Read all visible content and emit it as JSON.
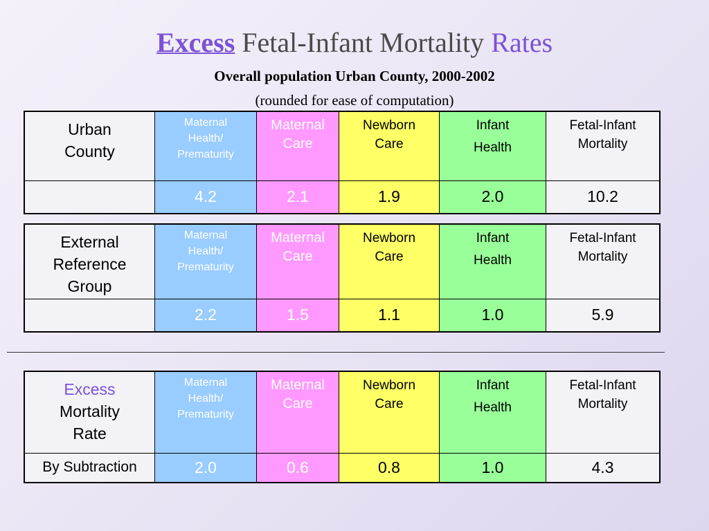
{
  "title": {
    "excess": "Excess",
    "middle": " Fetal-Infant Mortality ",
    "rates": "Rates"
  },
  "subtitle": "Overall population Urban County, 2000-2002",
  "subnote": "(rounded for ease of computation)",
  "columns": {
    "maternal_health": [
      "Maternal",
      "Health/",
      "Prematurity"
    ],
    "maternal_care": [
      "Maternal",
      "Care"
    ],
    "newborn_care": [
      "Newborn",
      "Care"
    ],
    "infant_health": [
      "Infant",
      "Health"
    ],
    "fetal_infant_mortality": [
      "Fetal-Infant",
      "Mortality"
    ]
  },
  "colors": {
    "maternal_health": "#99ccff",
    "maternal_care": "#ff99ff",
    "newborn_care": "#ffff66",
    "infant_health": "#99ff99",
    "fetal_infant_mortality": "#f2f2f7",
    "accent": "#7b52d6"
  },
  "tables": [
    {
      "label_lines": [
        "Urban",
        "County"
      ],
      "row_label": "",
      "values": [
        "4.2",
        "2.1",
        "1.9",
        "2.0",
        "10.2"
      ]
    },
    {
      "label_lines": [
        "External",
        "Reference",
        "Group"
      ],
      "row_label": "",
      "values": [
        "2.2",
        "1.5",
        "1.1",
        "1.0",
        "5.9"
      ]
    },
    {
      "label_lines": [
        "Excess",
        "Mortality",
        "Rate"
      ],
      "row_label": "By Subtraction",
      "values": [
        "2.0",
        "0.6",
        "0.8",
        "1.0",
        "4.3"
      ]
    }
  ]
}
